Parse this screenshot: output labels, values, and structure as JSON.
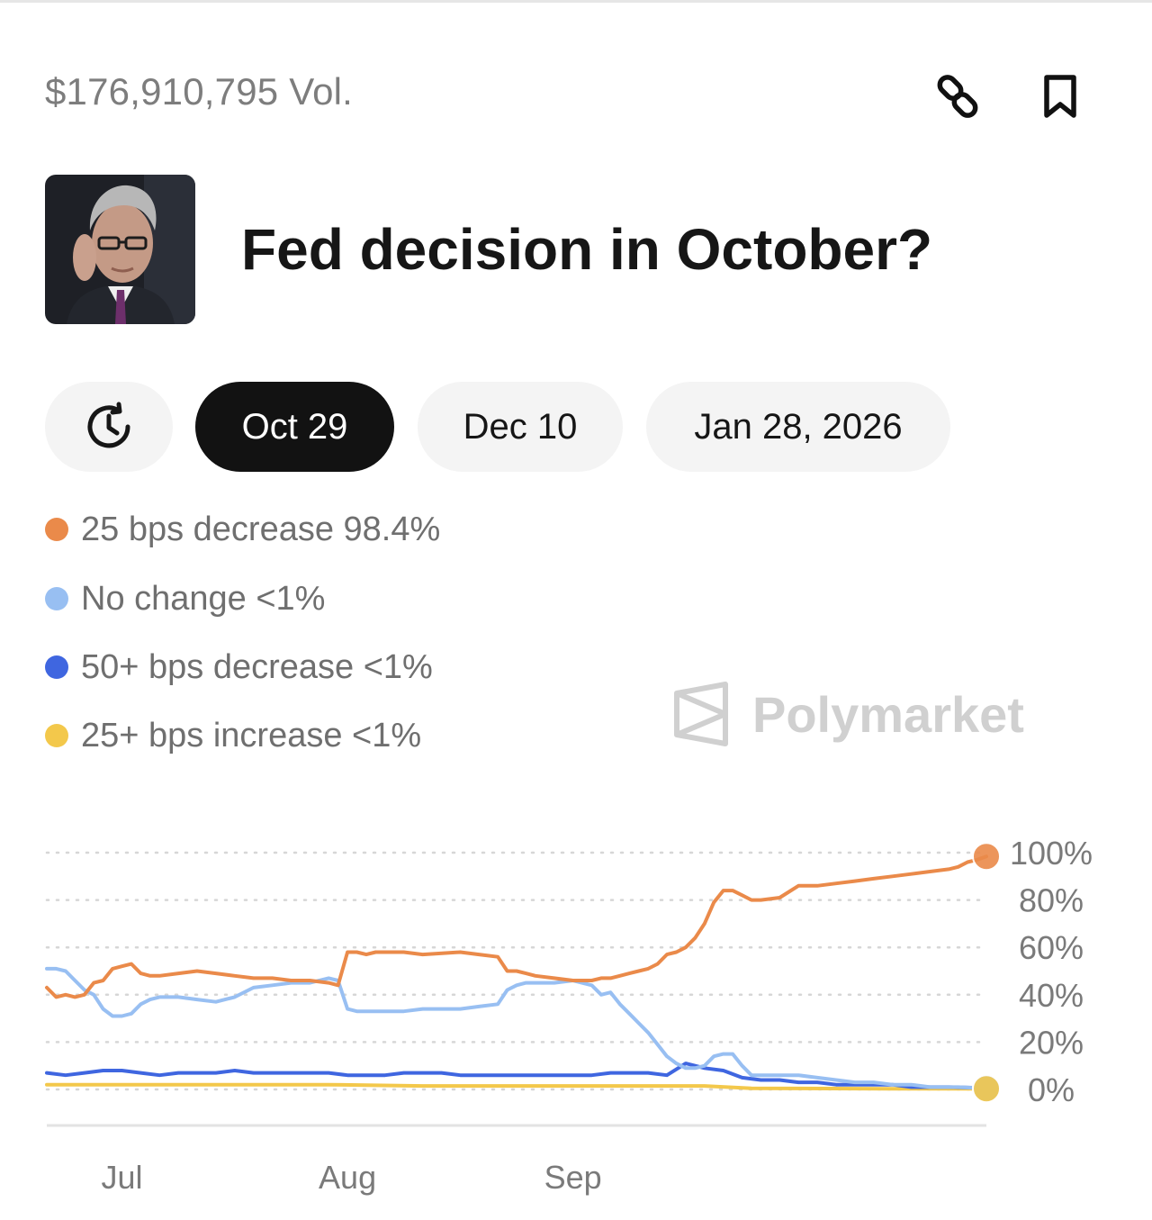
{
  "header": {
    "volume": "$176,910,795 Vol.",
    "link_icon": "link-icon",
    "bookmark_icon": "bookmark-icon"
  },
  "market": {
    "avatar_icon": "portrait-avatar",
    "title": "Fed decision in October?"
  },
  "date_tabs": {
    "history_icon": "clock-history-icon",
    "items": [
      {
        "label": "Oct 29",
        "active": true
      },
      {
        "label": "Dec 10",
        "active": false
      },
      {
        "label": "Jan 28, 2026",
        "active": false
      }
    ]
  },
  "legend": [
    {
      "label": "25 bps decrease 98.4%",
      "color": "#ea8a4a"
    },
    {
      "label": "No change <1%",
      "color": "#98bff2"
    },
    {
      "label": "50+ bps decrease <1%",
      "color": "#3f66e0"
    },
    {
      "label": "25+ bps increase <1%",
      "color": "#f3c84b"
    }
  ],
  "watermark": {
    "text": "Polymarket",
    "icon": "polymarket-logo-icon"
  },
  "chart_data": {
    "type": "line",
    "x_tick_labels": [
      "Jul",
      "Aug",
      "Sep"
    ],
    "y_tick_labels": [
      "100%",
      "80%",
      "60%",
      "40%",
      "20%",
      "0%"
    ],
    "ylim": [
      0,
      100
    ],
    "xlim": [
      0,
      100
    ],
    "x_ticks": [
      8,
      32,
      56
    ],
    "grid": true,
    "series": [
      {
        "name": "25 bps decrease",
        "color": "#ea8a4a",
        "x": [
          0,
          1,
          2,
          3,
          4,
          5,
          6,
          7,
          8,
          9,
          10,
          11,
          12,
          14,
          16,
          18,
          20,
          22,
          24,
          26,
          28,
          30,
          31,
          32,
          33,
          34,
          35,
          38,
          40,
          44,
          46,
          48,
          49,
          50,
          51,
          52,
          54,
          56,
          58,
          59,
          60,
          61,
          62,
          63,
          64,
          65,
          66,
          67,
          68,
          69,
          70,
          71,
          72,
          73,
          74,
          75,
          76,
          78,
          80,
          82,
          84,
          86,
          88,
          90,
          92,
          94,
          96,
          97,
          98,
          99,
          100
        ],
        "y": [
          43,
          39,
          40,
          39,
          40,
          45,
          46,
          51,
          52,
          53,
          49,
          48,
          48,
          49,
          50,
          49,
          48,
          47,
          47,
          46,
          46,
          45,
          44,
          58,
          58,
          57,
          58,
          58,
          57,
          58,
          57,
          56,
          50,
          50,
          49,
          48,
          47,
          46,
          46,
          47,
          47,
          48,
          49,
          50,
          51,
          53,
          57,
          58,
          60,
          64,
          70,
          79,
          84,
          84,
          82,
          80,
          80,
          81,
          86,
          86,
          87,
          88,
          89,
          90,
          91,
          92,
          93,
          94,
          96,
          97,
          98.4
        ]
      },
      {
        "name": "No change",
        "color": "#98bff2",
        "x": [
          0,
          1,
          2,
          3,
          4,
          5,
          6,
          7,
          8,
          9,
          10,
          11,
          12,
          14,
          16,
          18,
          20,
          22,
          24,
          26,
          28,
          30,
          31,
          32,
          33,
          34,
          35,
          38,
          40,
          44,
          46,
          48,
          49,
          50,
          51,
          52,
          54,
          56,
          58,
          59,
          60,
          61,
          62,
          63,
          64,
          65,
          66,
          67,
          68,
          69,
          70,
          71,
          72,
          73,
          74,
          75,
          76,
          78,
          80,
          82,
          84,
          86,
          88,
          90,
          92,
          94,
          96,
          97,
          98,
          99,
          100
        ],
        "y": [
          51,
          51,
          50,
          46,
          42,
          40,
          34,
          31,
          31,
          32,
          36,
          38,
          39,
          39,
          38,
          37,
          39,
          43,
          44,
          45,
          45,
          47,
          46,
          34,
          33,
          33,
          33,
          33,
          34,
          34,
          35,
          36,
          42,
          44,
          45,
          45,
          45,
          46,
          44,
          40,
          41,
          36,
          32,
          28,
          24,
          19,
          14,
          11,
          9,
          9,
          10,
          14,
          15,
          15,
          10,
          6,
          6,
          6,
          6,
          5,
          4,
          3,
          3,
          2,
          2,
          1,
          1,
          1,
          0.8,
          0.6,
          0.5
        ]
      },
      {
        "name": "50+ bps decrease",
        "color": "#3f66e0",
        "x": [
          0,
          2,
          4,
          6,
          8,
          10,
          12,
          14,
          16,
          18,
          20,
          22,
          24,
          26,
          28,
          30,
          32,
          34,
          36,
          38,
          40,
          42,
          44,
          46,
          48,
          50,
          52,
          54,
          56,
          58,
          60,
          62,
          64,
          66,
          68,
          70,
          72,
          74,
          76,
          78,
          80,
          82,
          84,
          86,
          88,
          90,
          92,
          94,
          96,
          98,
          100
        ],
        "y": [
          7,
          6,
          7,
          8,
          8,
          7,
          6,
          7,
          7,
          7,
          8,
          7,
          7,
          7,
          7,
          7,
          6,
          6,
          6,
          7,
          7,
          7,
          6,
          6,
          6,
          6,
          6,
          6,
          6,
          6,
          7,
          7,
          7,
          6,
          11,
          9,
          8,
          5,
          4,
          4,
          3,
          3,
          2,
          2,
          2,
          2,
          1,
          1,
          1,
          0.8,
          0.6
        ]
      },
      {
        "name": "25+ bps increase",
        "color": "#f3c84b",
        "x": [
          0,
          10,
          20,
          30,
          40,
          50,
          60,
          70,
          75,
          80,
          90,
          100
        ],
        "y": [
          2,
          2,
          2,
          2,
          1.5,
          1.5,
          1.5,
          1.5,
          0.5,
          0.4,
          0.3,
          0.3
        ]
      }
    ]
  }
}
